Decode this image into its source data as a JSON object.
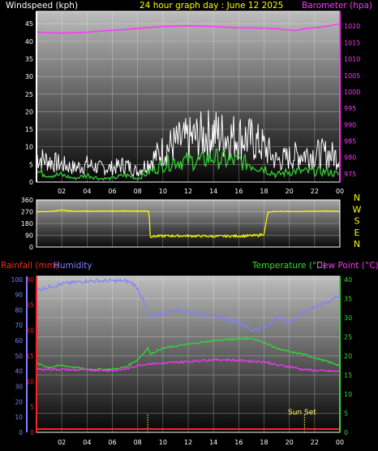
{
  "colors": {
    "wind_axis": "#ffffff",
    "title": "#ffff00",
    "baro": "#ff33ff",
    "wind_gust": "#ffffff",
    "wind_avg": "#33cc33",
    "wind_dir": "#ffff00",
    "rain": "#ff2222",
    "humidity": "#8080ff",
    "temperature": "#33dd33",
    "dewpoint": "#ff33ff",
    "sunset": "#ffff66"
  },
  "chart_data": [
    {
      "type": "line",
      "title": "24 hour graph day : June 12 2025",
      "y_left_label": "Windspeed (kph)",
      "y_right_label": "Barometer (hpa)",
      "y_left_ticks": [
        "0",
        "5",
        "10",
        "15",
        "20",
        "25",
        "30",
        "35",
        "40",
        "45"
      ],
      "y_right_ticks": [
        "975",
        "980",
        "985",
        "990",
        "995",
        "1000",
        "1005",
        "1010",
        "1015",
        "1020"
      ],
      "y_left_range": [
        0,
        48.5
      ],
      "y_right_range": [
        972.5,
        1024.5
      ],
      "x_ticks": [
        "02",
        "04",
        "06",
        "08",
        "10",
        "12",
        "14",
        "16",
        "18",
        "20",
        "22",
        "00"
      ],
      "x_range": [
        0,
        24
      ],
      "grid": true,
      "series": [
        {
          "key": "baro",
          "axis": "right",
          "values": [
            [
              0,
              1018.2
            ],
            [
              1,
              1018.0
            ],
            [
              2,
              1017.9
            ],
            [
              3,
              1018.0
            ],
            [
              4,
              1018.1
            ],
            [
              5,
              1018.5
            ],
            [
              6,
              1018.7
            ],
            [
              7,
              1019.0
            ],
            [
              8,
              1019.3
            ],
            [
              9,
              1019.6
            ],
            [
              10,
              1019.9
            ],
            [
              11,
              1020.0
            ],
            [
              12,
              1020.1
            ],
            [
              13,
              1020.0
            ],
            [
              14,
              1019.9
            ],
            [
              15,
              1019.7
            ],
            [
              16,
              1019.5
            ],
            [
              17,
              1019.5
            ],
            [
              18,
              1019.4
            ],
            [
              19,
              1019.2
            ],
            [
              20,
              1018.8
            ],
            [
              20.5,
              1018.6
            ],
            [
              21,
              1019.1
            ],
            [
              22,
              1019.5
            ],
            [
              23,
              1020.0
            ],
            [
              23.6,
              1020.5
            ],
            [
              24,
              1020.6
            ]
          ]
        },
        {
          "key": "gust",
          "axis": "left",
          "values": [
            [
              0,
              7
            ],
            [
              1,
              6
            ],
            [
              2,
              5
            ],
            [
              3,
              4
            ],
            [
              4,
              5
            ],
            [
              5,
              4
            ],
            [
              6,
              4
            ],
            [
              7,
              5
            ],
            [
              8,
              3
            ],
            [
              9,
              6
            ],
            [
              10,
              9
            ],
            [
              11,
              11
            ],
            [
              12,
              12
            ],
            [
              13,
              13
            ],
            [
              14,
              14
            ],
            [
              15,
              13
            ],
            [
              16,
              13
            ],
            [
              17,
              12
            ],
            [
              18,
              10
            ],
            [
              19,
              6
            ],
            [
              20,
              7
            ],
            [
              21,
              8
            ],
            [
              22,
              8
            ],
            [
              23,
              8
            ],
            [
              24,
              7
            ]
          ]
        },
        {
          "key": "avg",
          "axis": "left",
          "values": [
            [
              0,
              3
            ],
            [
              1,
              2
            ],
            [
              2,
              2
            ],
            [
              3,
              1
            ],
            [
              4,
              2
            ],
            [
              5,
              1
            ],
            [
              6,
              1
            ],
            [
              7,
              2
            ],
            [
              8,
              1
            ],
            [
              9,
              3
            ],
            [
              10,
              5
            ],
            [
              11,
              6
            ],
            [
              12,
              6
            ],
            [
              13,
              6
            ],
            [
              14,
              7
            ],
            [
              15,
              6
            ],
            [
              16,
              6
            ],
            [
              17,
              5
            ],
            [
              18,
              4
            ],
            [
              19,
              2
            ],
            [
              20,
              3
            ],
            [
              21,
              3
            ],
            [
              22,
              3
            ],
            [
              23,
              3
            ],
            [
              24,
              2
            ]
          ]
        }
      ]
    },
    {
      "type": "line",
      "y_ticks": [
        "0",
        "90",
        "180",
        "270",
        "360"
      ],
      "y_range": [
        0,
        360
      ],
      "compass_labels": [
        "N",
        "W",
        "S",
        "E",
        "N"
      ],
      "x_range": [
        0,
        24
      ],
      "series": [
        {
          "key": "dir",
          "values": [
            [
              0,
              270
            ],
            [
              1,
              272
            ],
            [
              2,
              283
            ],
            [
              3,
              273
            ],
            [
              6,
              275
            ],
            [
              8,
              275
            ],
            [
              8.9,
              275
            ],
            [
              9,
              80
            ],
            [
              10,
              85
            ],
            [
              12,
              85
            ],
            [
              14,
              82
            ],
            [
              16,
              84
            ],
            [
              17.5,
              88
            ],
            [
              18,
              100
            ],
            [
              18.3,
              265
            ],
            [
              19,
              272
            ],
            [
              21,
              272
            ],
            [
              23,
              275
            ],
            [
              24,
              272
            ]
          ]
        }
      ]
    },
    {
      "type": "line",
      "labels": {
        "rain": "Rainfall (mm)",
        "humidity": "Humidity",
        "temperature": "Temperature (°C)",
        "dewpoint": "Dew Point (°C)"
      },
      "left_outer_ticks": [
        "0",
        "10",
        "20",
        "30",
        "40",
        "50",
        "60",
        "70",
        "80",
        "90",
        "100"
      ],
      "left_inner_ticks": [
        "0",
        "5",
        "10",
        "15",
        "20",
        "25",
        "30"
      ],
      "right_ticks": [
        "0",
        "5",
        "10",
        "15",
        "20",
        "25",
        "30",
        "35",
        "40"
      ],
      "x_ticks": [
        "02",
        "04",
        "06",
        "08",
        "10",
        "12",
        "14",
        "16",
        "18",
        "20",
        "22",
        "00"
      ],
      "x_range": [
        0,
        24
      ],
      "humidity_range": [
        0,
        102
      ],
      "temp_range": [
        0,
        40.8
      ],
      "sunset_label": "Sun Set",
      "sunset_hour": 21.2,
      "sunrise_hour": 8.8,
      "series": [
        {
          "key": "humidity",
          "values": [
            [
              0,
              93
            ],
            [
              1,
              95
            ],
            [
              2,
              97
            ],
            [
              3,
              98
            ],
            [
              4,
              99
            ],
            [
              5,
              99
            ],
            [
              6,
              99
            ],
            [
              7,
              99
            ],
            [
              7.5,
              98
            ],
            [
              8,
              94
            ],
            [
              8.5,
              85
            ],
            [
              9,
              75
            ],
            [
              10,
              78
            ],
            [
              11,
              80
            ],
            [
              12,
              79
            ],
            [
              13,
              77
            ],
            [
              14,
              76
            ],
            [
              15,
              74
            ],
            [
              16,
              72
            ],
            [
              17,
              67
            ],
            [
              18,
              68
            ],
            [
              19,
              75
            ],
            [
              20,
              72
            ],
            [
              21,
              78
            ],
            [
              22,
              82
            ],
            [
              23,
              85
            ],
            [
              24,
              90
            ]
          ]
        },
        {
          "key": "temperature",
          "values": [
            [
              0,
              18
            ],
            [
              1,
              17
            ],
            [
              2,
              17.5
            ],
            [
              3,
              17
            ],
            [
              4,
              16.5
            ],
            [
              5,
              16.5
            ],
            [
              6,
              16.5
            ],
            [
              7,
              17
            ],
            [
              8,
              19
            ],
            [
              8.8,
              22
            ],
            [
              9,
              20.5
            ],
            [
              10,
              22
            ],
            [
              11,
              22.5
            ],
            [
              12,
              23
            ],
            [
              13,
              23.5
            ],
            [
              14,
              24
            ],
            [
              15,
              24.2
            ],
            [
              16,
              24.5
            ],
            [
              17,
              24.5
            ],
            [
              18,
              23.5
            ],
            [
              19,
              22
            ],
            [
              20,
              21
            ],
            [
              21,
              20.5
            ],
            [
              22,
              19.5
            ],
            [
              23,
              18.5
            ],
            [
              24,
              17.5
            ]
          ]
        },
        {
          "key": "dewpoint",
          "values": [
            [
              0,
              16.5
            ],
            [
              1,
              16.5
            ],
            [
              2,
              16.5
            ],
            [
              3,
              16.3
            ],
            [
              4,
              16.3
            ],
            [
              5,
              16.3
            ],
            [
              6,
              16.2
            ],
            [
              7,
              16.5
            ],
            [
              8,
              17.5
            ],
            [
              9,
              18
            ],
            [
              10,
              18
            ],
            [
              11,
              18.3
            ],
            [
              12,
              18.5
            ],
            [
              13,
              18.8
            ],
            [
              14,
              19
            ],
            [
              15,
              19
            ],
            [
              16,
              18.8
            ],
            [
              17,
              18.6
            ],
            [
              18,
              18.5
            ],
            [
              19,
              17.6
            ],
            [
              20,
              17.2
            ],
            [
              21,
              16.5
            ],
            [
              22,
              16.2
            ],
            [
              23,
              16
            ],
            [
              24,
              15.9
            ]
          ]
        },
        {
          "key": "rain",
          "values": [
            [
              0,
              0
            ],
            [
              24,
              0
            ]
          ]
        }
      ]
    }
  ]
}
